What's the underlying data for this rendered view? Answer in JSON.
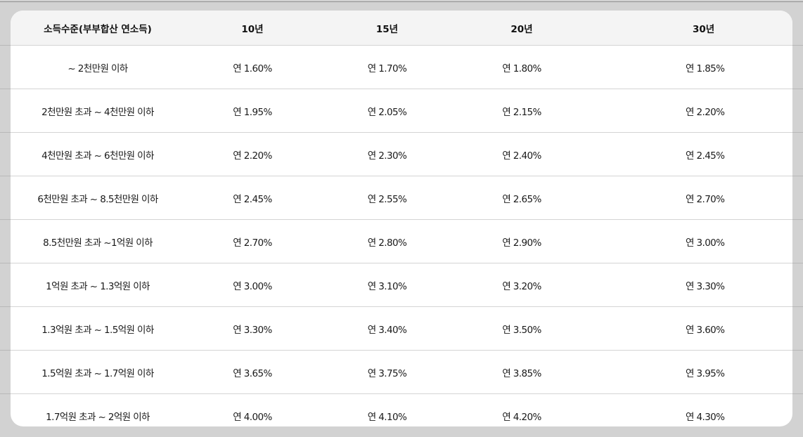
{
  "table": {
    "headers": [
      "소득수준(부부합산 연소득)",
      "10년",
      "15년",
      "20년",
      "30년"
    ],
    "rows": [
      [
        "~ 2천만원 이하",
        "연 1.60%",
        "연 1.70%",
        "연 1.80%",
        "연 1.85%"
      ],
      [
        "2천만원 초과 ~ 4천만원 이하",
        "연 1.95%",
        "연 2.05%",
        "연 2.15%",
        "연 2.20%"
      ],
      [
        "4천만원 초과 ~ 6천만원 이하",
        "연 2.20%",
        "연 2.30%",
        "연 2.40%",
        "연 2.45%"
      ],
      [
        "6천만원 초과 ~ 8.5천만원 이하",
        "연 2.45%",
        "연 2.55%",
        "연 2.65%",
        "연 2.70%"
      ],
      [
        "8.5천만원 초과 ~1억원 이하",
        "연 2.70%",
        "연 2.80%",
        "연 2.90%",
        "연 3.00%"
      ],
      [
        "1억원 초과 ~ 1.3억원 이하",
        "연 3.00%",
        "연 3.10%",
        "연 3.20%",
        "연 3.30%"
      ],
      [
        "1.3억원 초과 ~ 1.5억원 이하",
        "연 3.30%",
        "연 3.40%",
        "연 3.50%",
        "연 3.60%"
      ],
      [
        "1.5억원 초과 ~ 1.7억원 이하",
        "연 3.65%",
        "연 3.75%",
        "연 3.85%",
        "연 3.95%"
      ],
      [
        "1.7억원 초과 ~ 2억원 이하",
        "연 4.00%",
        "연 4.10%",
        "연 4.20%",
        "연 4.30%"
      ]
    ]
  },
  "colors": {
    "page_background": "#d2d2d2",
    "card_background": "#ffffff",
    "header_background": "#f4f4f4",
    "row_divider": "#d4d4d4",
    "text": "#1a1a1a"
  }
}
